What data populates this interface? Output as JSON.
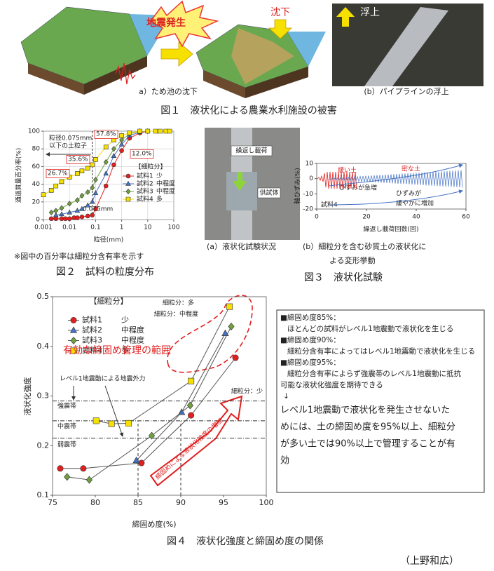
{
  "figure1": {
    "quake_label": "地震発生",
    "subsidence_label": "沈下",
    "uplift_label": "浮上",
    "caption_a": "a）ため池の沈下",
    "caption_b": "(b）パイプラインの浮上",
    "caption": "図１　液状化による農業水利施設の被害"
  },
  "figure2": {
    "note": "※図中の百分率は細粒分含有率を示す",
    "caption": "図２　試料の粒度分布"
  },
  "figure3": {
    "photo_labels": [
      "繰返し載荷",
      "供試体"
    ],
    "caption_a": "(a）液状化試験状況",
    "caption_b": [
      "(b）細粒分を含む砂質土の液状化に",
      "よる変形挙動"
    ],
    "caption": "図３　液状化試験"
  },
  "figure4": {
    "caption": "図４　液状化強度と締固め度の関係",
    "summary": [
      "■締固め度85%：",
      "ほとんどの試料がレベル1地震動で液状化を生じる",
      "■締固め度90%：",
      "細粒分含有率によってはレベル1地震動で液状化を生じる",
      "■締固め度95%：",
      "細粒分含有率によらず強震帯のレベル1地震動に抵抗",
      "可能な液状化強度を期待できる",
      "↓",
      "レベル1地震動で液状化を発生させないた",
      "めには、土の締固め度を95%以上、細粒分",
      "が多い土では90%以上で管理することが有",
      "効"
    ]
  },
  "author": "（上野和広）",
  "chart_data": [
    {
      "type": "line",
      "xlabel": "粒径(mm)",
      "ylabel": "通過質量百分率(%)",
      "xscale": "log",
      "xlim": [
        0.001,
        100
      ],
      "xticks": [
        0.001,
        0.01,
        0.1,
        1,
        10,
        100
      ],
      "ylim": [
        0,
        100
      ],
      "yticks": [
        0,
        20,
        40,
        60,
        80,
        100
      ],
      "grid": true,
      "legend_title": "【細粒分】",
      "reference_x": 0.075,
      "annotations": [
        "粒径0.075mm",
        "以下の土粒子",
        "26.7%",
        "35.6%",
        "57.8%",
        "12.0%",
        "0.075mm"
      ],
      "series": [
        {
          "name": "試料1",
          "fines": "少",
          "color": "#e02020",
          "marker": "circle",
          "x": [
            0.002,
            0.003,
            0.005,
            0.007,
            0.01,
            0.015,
            0.02,
            0.03,
            0.05,
            0.075,
            0.1,
            0.25,
            0.5,
            1,
            2,
            5,
            10
          ],
          "values": [
            1,
            1,
            1,
            1,
            1,
            2,
            2,
            3,
            4,
            5,
            12,
            38,
            62,
            78,
            92,
            98,
            100
          ]
        },
        {
          "name": "試料2",
          "fines": "中程度",
          "color": "#4472c4",
          "marker": "triangle",
          "x": [
            0.003,
            0.005,
            0.01,
            0.02,
            0.03,
            0.05,
            0.075,
            0.1,
            0.25,
            0.5,
            1,
            2,
            5,
            10
          ],
          "values": [
            5,
            6,
            8,
            10,
            12,
            16,
            20,
            30,
            52,
            72,
            85,
            95,
            99,
            100
          ]
        },
        {
          "name": "試料3",
          "fines": "中程度",
          "color": "#70a040",
          "marker": "diamond",
          "x": [
            0.002,
            0.003,
            0.005,
            0.01,
            0.02,
            0.03,
            0.05,
            0.075,
            0.1,
            0.25,
            0.5,
            1,
            2,
            5,
            10
          ],
          "values": [
            8,
            10,
            13,
            18,
            22,
            27,
            31,
            36,
            45,
            65,
            80,
            90,
            97,
            100,
            100
          ]
        },
        {
          "name": "試料4",
          "fines": "多",
          "color": "#f5e000",
          "marker": "square",
          "x": [
            0.001,
            0.002,
            0.003,
            0.005,
            0.01,
            0.02,
            0.03,
            0.05,
            0.075,
            0.1,
            0.25,
            0.5,
            1,
            2,
            5,
            10,
            20,
            30,
            50,
            70
          ],
          "values": [
            28,
            33,
            38,
            43,
            48,
            52,
            55,
            58,
            62,
            68,
            82,
            90,
            95,
            98,
            100,
            100,
            100,
            100,
            100,
            100
          ]
        }
      ]
    },
    {
      "type": "line",
      "xlabel": "繰返し載荷回数(回)",
      "ylabel": "軸ひずみ(%)",
      "xlim": [
        0,
        60
      ],
      "xticks": [
        0,
        20,
        40,
        60
      ],
      "ylim": [
        -20,
        10
      ],
      "yticks": [
        10,
        0,
        -10,
        -20
      ],
      "annotations": [
        "緩い土",
        "ひずみが急増",
        "密な土",
        "ひずみが",
        "緩やかに増加",
        "試料4"
      ],
      "series": []
    },
    {
      "type": "line",
      "xlabel": "締固め度(%)",
      "ylabel": "液状化強度",
      "xlim": [
        75,
        100
      ],
      "xticks": [
        75,
        80,
        85,
        90,
        95,
        100
      ],
      "ylim": [
        0.1,
        0.5
      ],
      "yticks": [
        0.1,
        0.2,
        0.3,
        0.4,
        0.5
      ],
      "line_color": "#555555",
      "legend_title": "【細粒分】",
      "reference_y": [
        0.29,
        0.25,
        0.215
      ],
      "reference_x": [
        85,
        90
      ],
      "annotations": [
        "有効な締固め管理の範囲",
        "レベル1地震動による地震外力",
        "強震帯",
        "中震帯",
        "弱震帯",
        "細粒分：多",
        "細粒分：中程度",
        "細粒分：少",
        "締固めによる液状化強度の増加"
      ],
      "series": [
        {
          "name": "試料1",
          "fines": "少",
          "color": "#e02020",
          "marker": "circle",
          "x": [
            75.9,
            78.6,
            85.4,
            91.2,
            96.4
          ],
          "values": [
            0.154,
            0.154,
            0.165,
            0.261,
            0.377
          ]
        },
        {
          "name": "試料2",
          "fines": "中程度",
          "color": "#4472c4",
          "marker": "triangle",
          "x": [
            84.8,
            90.1,
            95.2
          ],
          "values": [
            0.17,
            0.267,
            0.426
          ]
        },
        {
          "name": "試料3",
          "fines": "中程度",
          "color": "#70a040",
          "marker": "diamond",
          "x": [
            76.7,
            79.3,
            86.6,
            91.1,
            95.9
          ],
          "values": [
            0.137,
            0.131,
            0.22,
            0.281,
            0.44
          ]
        },
        {
          "name": "試料4",
          "fines": "多",
          "color": "#f5e000",
          "marker": "square",
          "x": [
            80.1,
            81.9,
            83.9,
            91.2,
            95.7
          ],
          "values": [
            0.25,
            0.244,
            0.245,
            0.33,
            0.48
          ]
        }
      ]
    }
  ]
}
